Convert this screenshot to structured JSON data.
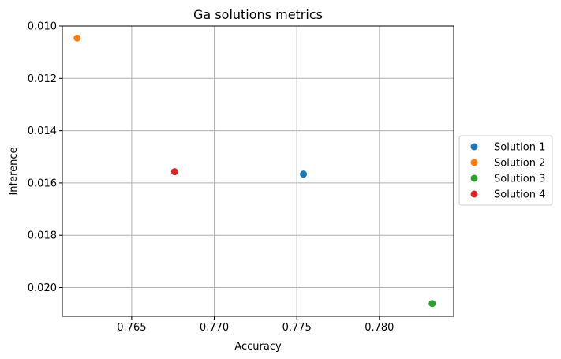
{
  "chart_data": {
    "type": "scatter",
    "title": "Ga solutions metrics",
    "xlabel": "Accuracy",
    "ylabel": "Inference",
    "xlim": [
      0.7608,
      0.7845
    ],
    "ylim": [
      0.0211,
      0.01
    ],
    "y_inverted": true,
    "x_ticks": [
      0.765,
      0.77,
      0.775,
      0.78
    ],
    "x_tick_labels": [
      "0.765",
      "0.770",
      "0.775",
      "0.780"
    ],
    "y_ticks": [
      0.01,
      0.012,
      0.014,
      0.016,
      0.018,
      0.02
    ],
    "y_tick_labels": [
      "0.010",
      "0.012",
      "0.014",
      "0.016",
      "0.018",
      "0.020"
    ],
    "grid": true,
    "legend_position": "center-right-outside",
    "series": [
      {
        "name": "Solution 1",
        "color": "#1f77b4",
        "points": [
          {
            "x": 0.7754,
            "y": 0.01566
          }
        ]
      },
      {
        "name": "Solution 2",
        "color": "#ff7f0e",
        "points": [
          {
            "x": 0.7617,
            "y": 0.01046
          }
        ]
      },
      {
        "name": "Solution 3",
        "color": "#2ca02c",
        "points": [
          {
            "x": 0.7832,
            "y": 0.02061
          }
        ]
      },
      {
        "name": "Solution 4",
        "color": "#d62728",
        "points": [
          {
            "x": 0.7676,
            "y": 0.01557
          }
        ]
      }
    ]
  }
}
